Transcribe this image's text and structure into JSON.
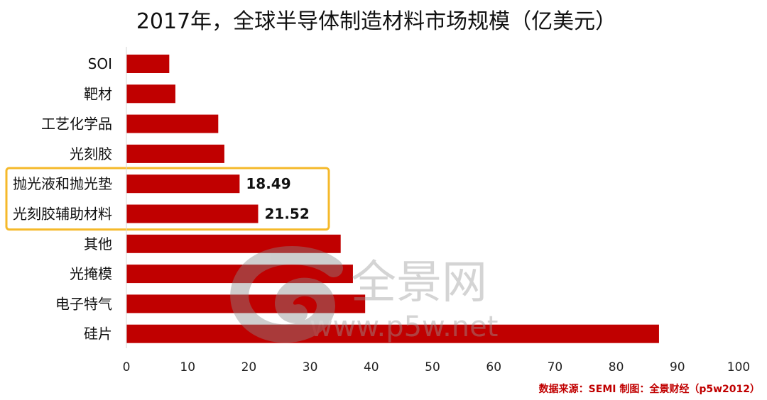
{
  "chart_data": {
    "type": "bar",
    "orientation": "horizontal",
    "title": "2017年，全球半导体制造材料市场规模（亿美元）",
    "categories": [
      "SOI",
      "靶材",
      "工艺化学品",
      "光刻胶",
      "抛光液和抛光垫",
      "光刻胶辅助材料",
      "其他",
      "光掩模",
      "电子特气",
      "硅片"
    ],
    "values": [
      7,
      8,
      15,
      16,
      18.49,
      21.52,
      35,
      37,
      39,
      87
    ],
    "data_labels": [
      {
        "category": "抛光液和抛光垫",
        "text": "18.49"
      },
      {
        "category": "光刻胶辅助材料",
        "text": "21.52"
      }
    ],
    "highlighted_categories": [
      "抛光液和抛光垫",
      "光刻胶辅助材料"
    ],
    "xlim": [
      0,
      100
    ],
    "xticks": [
      0,
      10,
      20,
      30,
      40,
      50,
      60,
      70,
      80,
      90,
      100
    ],
    "xlabel": "",
    "ylabel": "",
    "grid": false,
    "legend": "none",
    "bar_color": "#c00000",
    "highlight_color": "#f5b92a"
  },
  "source_note": "数据来源：SEMI  制图：全景财经（p5w2012）",
  "watermark": {
    "brand": "全景网",
    "url": "www.p5w.net",
    "color": "#9a9a9a"
  }
}
